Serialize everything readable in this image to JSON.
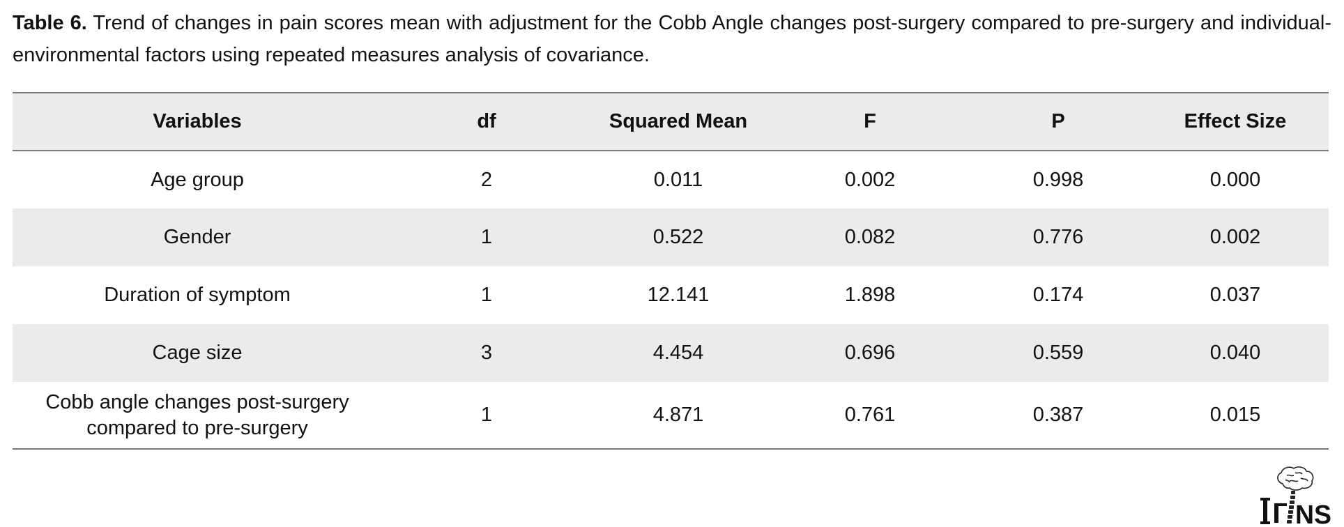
{
  "caption": {
    "label": "Table 6.",
    "text": " Trend of changes in pain scores mean with adjustment for the Cobb Angle changes post-surgery compared to pre-surgery and individual-environmental factors using repeated measures analysis of covariance."
  },
  "table": {
    "headers": [
      "Variables",
      "df",
      "Squared Mean",
      "F",
      "P",
      "Effect Size"
    ],
    "rows": [
      {
        "variable": "Age group",
        "df": "2",
        "squared_mean": "0.011",
        "f": "0.002",
        "p": "0.998",
        "effect_size": "0.000"
      },
      {
        "variable": "Gender",
        "df": "1",
        "squared_mean": "0.522",
        "f": "0.082",
        "p": "0.776",
        "effect_size": "0.002"
      },
      {
        "variable": "Duration of symptom",
        "df": "1",
        "squared_mean": "12.141",
        "f": "1.898",
        "p": "0.174",
        "effect_size": "0.037"
      },
      {
        "variable": "Cage size",
        "df": "3",
        "squared_mean": "4.454",
        "f": "0.696",
        "p": "0.559",
        "effect_size": "0.040"
      },
      {
        "variable": "Cobb angle changes post-surgery\ncompared to pre-surgery",
        "df": "1",
        "squared_mean": "4.871",
        "f": "0.761",
        "p": "0.387",
        "effect_size": "0.015"
      }
    ]
  },
  "logo": {
    "text": "INS",
    "icon": "brain-spine-logo-icon"
  }
}
